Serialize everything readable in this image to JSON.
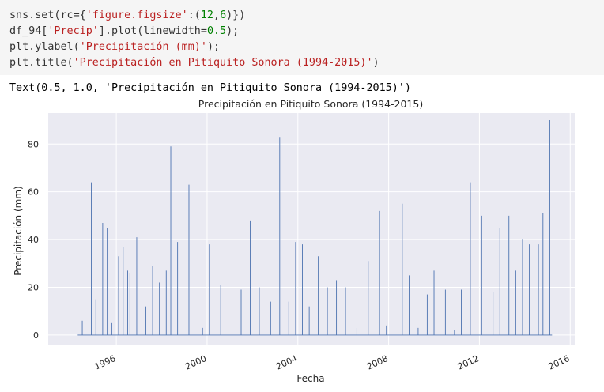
{
  "code": {
    "lines": [
      [
        {
          "t": "sns.set(rc={"
        },
        {
          "t": "'figure.figsize'",
          "k": "str"
        },
        {
          "t": ":("
        },
        {
          "t": "12",
          "k": "num"
        },
        {
          "t": ","
        },
        {
          "t": "6",
          "k": "num"
        },
        {
          "t": ")})"
        }
      ],
      [
        {
          "t": "df_94["
        },
        {
          "t": "'Precip'",
          "k": "str"
        },
        {
          "t": "].plot(linewidth="
        },
        {
          "t": "0.5",
          "k": "num"
        },
        {
          "t": ");"
        }
      ],
      [
        {
          "t": "plt.ylabel("
        },
        {
          "t": "'Precipitación (mm)'",
          "k": "str"
        },
        {
          "t": ");"
        }
      ],
      [
        {
          "t": "plt.title("
        },
        {
          "t": "'Precipitación en Pitiquito Sonora (1994-2015)'",
          "k": "str"
        },
        {
          "t": ")"
        }
      ]
    ]
  },
  "output": {
    "text": "Text(0.5, 1.0, 'Precipitación en Pitiquito Sonora (1994-2015)')"
  },
  "chart_data": {
    "type": "line",
    "title": "Precipitación en Pitiquito Sonora (1994-2015)",
    "xlabel": "Fecha",
    "ylabel": "Precipitación (mm)",
    "x_ticks": [
      "1996",
      "2000",
      "2004",
      "2008",
      "2012",
      "2016"
    ],
    "y_ticks": [
      0,
      20,
      40,
      60,
      80
    ],
    "xlim": [
      1993.0,
      2016.2
    ],
    "ylim": [
      -4,
      93
    ],
    "grid": true,
    "line_color": "#4c72b0",
    "plot_background": "#eaeaf2",
    "grid_color": "#ffffff",
    "series": [
      {
        "x": [
          1994.5,
          1994.9,
          1995.1,
          1995.4,
          1995.6,
          1995.8,
          1996.1,
          1996.3,
          1996.5,
          1996.6,
          1996.9,
          1997.3,
          1997.6,
          1997.9,
          1998.2,
          1998.4,
          1998.7,
          1999.2,
          1999.6,
          1999.8,
          2000.1,
          2000.6,
          2001.1,
          2001.5,
          2001.9,
          2002.3,
          2002.8,
          2003.2,
          2003.6,
          2003.9,
          2004.2,
          2004.5,
          2004.9,
          2005.3,
          2005.7,
          2006.1,
          2006.6,
          2007.1,
          2007.6,
          2007.9,
          2008.1,
          2008.6,
          2008.9,
          2009.3,
          2009.7,
          2010.0,
          2010.5,
          2010.9,
          2011.2,
          2011.6,
          2012.1,
          2012.6,
          2012.9,
          2013.3,
          2013.6,
          2013.9,
          2014.2,
          2014.6,
          2014.8,
          2015.1
        ],
        "y": [
          6,
          64,
          15,
          47,
          45,
          5,
          33,
          37,
          27,
          26,
          41,
          12,
          29,
          22,
          27,
          79,
          39,
          63,
          65,
          3,
          38,
          21,
          14,
          19,
          48,
          20,
          14,
          83,
          14,
          39,
          38,
          12,
          33,
          20,
          23,
          20,
          3,
          31,
          52,
          4,
          17,
          55,
          25,
          3,
          17,
          27,
          19,
          2,
          19,
          64,
          50,
          18,
          45,
          50,
          27,
          40,
          38,
          38,
          51,
          90
        ]
      }
    ]
  }
}
